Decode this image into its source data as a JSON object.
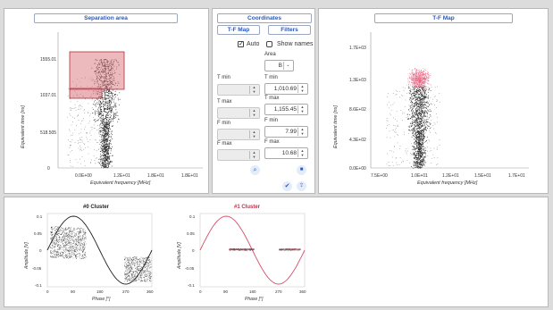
{
  "separation": {
    "title": "Separation area",
    "ylabel": "Equivalent time [ns]",
    "xlabel": "Equivalent frequency [MHz]",
    "yticks": [
      "1555.01",
      "1037.01",
      "518.505",
      "0"
    ],
    "xticks": [
      "0.0E+00",
      "1.2E+01",
      "1.8E+01",
      "1.8E+01"
    ]
  },
  "coordinates": {
    "title": "Coordinates",
    "tf_map_button": "T-F Map",
    "filters_button": "Filters",
    "auto_label": "Auto",
    "auto_checked": true,
    "show_names_label": "Show names",
    "show_names_checked": false,
    "area_label": "Area",
    "area_value": "B",
    "tmin_left": "T min",
    "tmin_right": "T min",
    "tmin_value": "1,010.69",
    "tmax_left": "T max",
    "tmax_right": "T max",
    "tmax_value": "1,155.45",
    "fmin_left": "F min",
    "fmin_right": "F min",
    "fmin_value": "7.99",
    "fmax_left": "F max",
    "fmax_right": "F max",
    "fmax_value": "10.68",
    "colors": {
      "accent": "#2a57b8"
    },
    "icons": [
      "zoom-icon",
      "trash-icon",
      "check-icon",
      "export-icon"
    ]
  },
  "tfmap": {
    "title": "T-F Map",
    "ylabel": "Equivalent time [ns]",
    "xlabel": "Equivalent frequency [MHz]",
    "yticks": [
      "1.7E+03",
      "1.3E+03",
      "8.6E+02",
      "4.3E+02",
      "0.0E+00"
    ],
    "xticks": [
      "7.5E+00",
      "1.0E+01",
      "1.2E+01",
      "1.5E+01",
      "1.7E+01"
    ]
  },
  "cluster0": {
    "title": "#0 Cluster",
    "ylabel": "Amplitude [V]",
    "xlabel": "Phase [°]",
    "yticks": [
      "0.1",
      "0.05",
      "0",
      "-0.05",
      "-0.1"
    ],
    "xticks": [
      "0",
      "90",
      "180",
      "270",
      "360"
    ]
  },
  "cluster1": {
    "title": "#1 Cluster",
    "ylabel": "Amplitude [V]",
    "xlabel": "Phase [°]",
    "yticks": [
      "0.1",
      "0.05",
      "0",
      "-0.05",
      "-0.1"
    ],
    "xticks": [
      "0",
      "90",
      "180",
      "270",
      "360"
    ]
  }
}
